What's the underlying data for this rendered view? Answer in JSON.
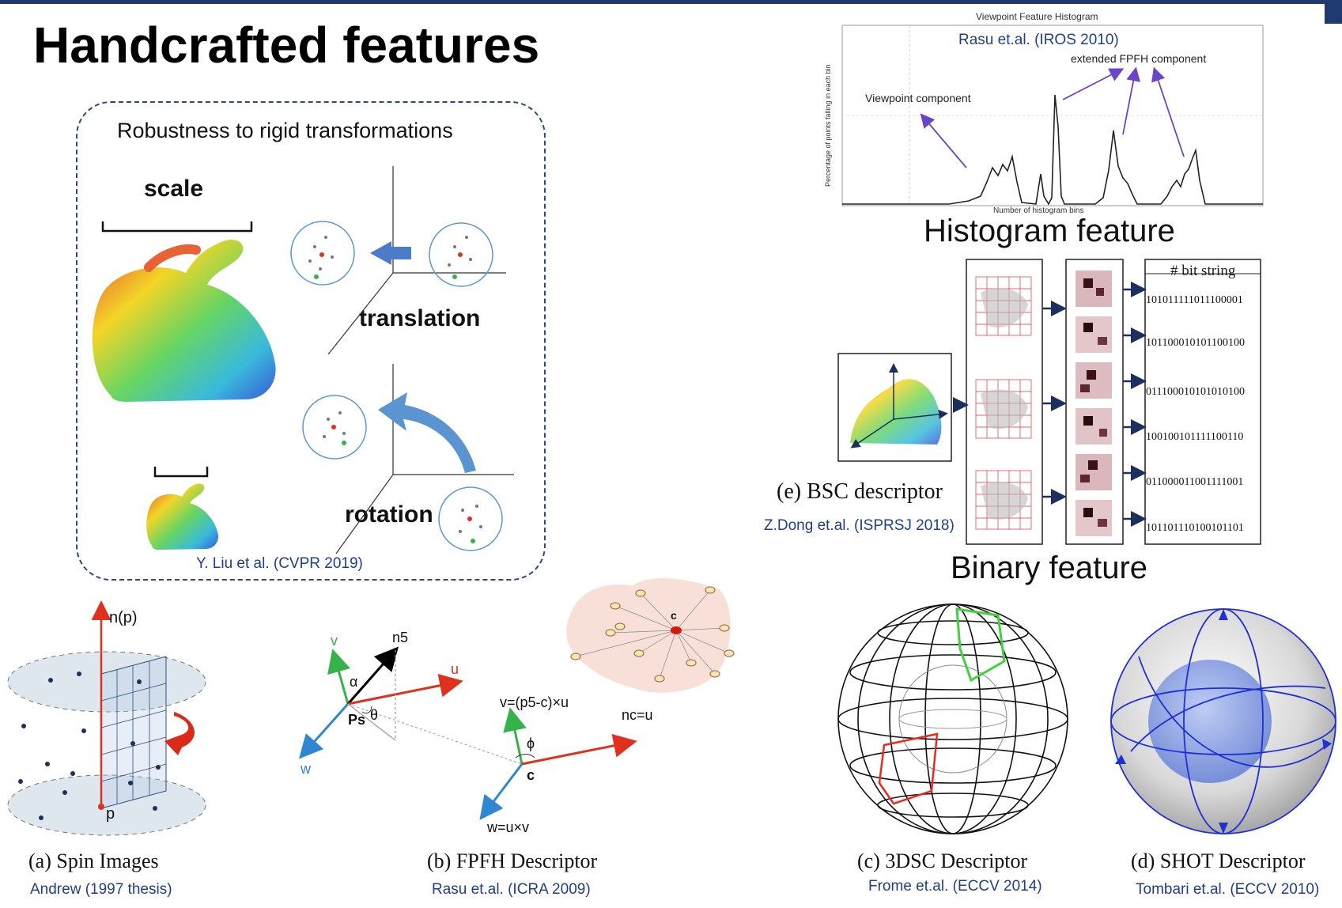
{
  "slide": {
    "title": "Handcrafted features"
  },
  "robustness": {
    "heading": "Robustness to rigid transformations",
    "scale_label": "scale",
    "translation_label": "translation",
    "rotation_label": "rotation",
    "citation": "Y. Liu et al.  (CVPR 2019)"
  },
  "histogram": {
    "chart_title": "Viewpoint Feature Histogram",
    "citation": "Rasu et.al. (IROS 2010)",
    "annotation_extended": "extended FPFH component",
    "annotation_viewpoint": "Viewpoint component",
    "ylabel": "Percentage of points falling in each bin",
    "xlabel": "Number of histogram bins",
    "section_label": "Histogram feature"
  },
  "binary": {
    "bits_header": "# bit string",
    "bit_strings": [
      "101011111011100001",
      "101100010101100100",
      "011100010101010100",
      "100100101111100110",
      "011000011001111001",
      "101101110100101101"
    ],
    "caption": "(e) BSC descriptor",
    "citation": "Z.Dong et.al. (ISPRSJ 2018)",
    "section_label": "Binary feature"
  },
  "spin": {
    "caption": "(a) Spin Images",
    "citation": "Andrew  (1997 thesis)",
    "np_label": "n(p)",
    "p_label": "p"
  },
  "fpfh": {
    "caption": "(b) FPFH Descriptor",
    "citation": "Rasu et.al. (ICRA 2009)",
    "label_v": "v",
    "label_u": "u",
    "label_w": "w",
    "label_n5": "n5",
    "label_alpha": "α",
    "label_theta": "θ",
    "label_ps": "Ps",
    "label_phi": "ϕ",
    "label_c": "c",
    "label_vformula": "v=(p5-c)×u",
    "label_nc": "nc=u",
    "label_wformula": "w=u×v",
    "label_center": "c"
  },
  "dsc": {
    "caption": "(c) 3DSC Descriptor",
    "citation": "Frome et.al. (ECCV 2014)"
  },
  "shot": {
    "caption": "(d) SHOT Descriptor",
    "citation": "Tombari et.al. (ECCV 2010)"
  },
  "colors": {
    "accent_navy": "#1f3a6e",
    "citation_blue": "#1f3f8a",
    "arrow_blue": "#4a7cc7",
    "red": "#e0301e",
    "green": "#34b34a"
  }
}
